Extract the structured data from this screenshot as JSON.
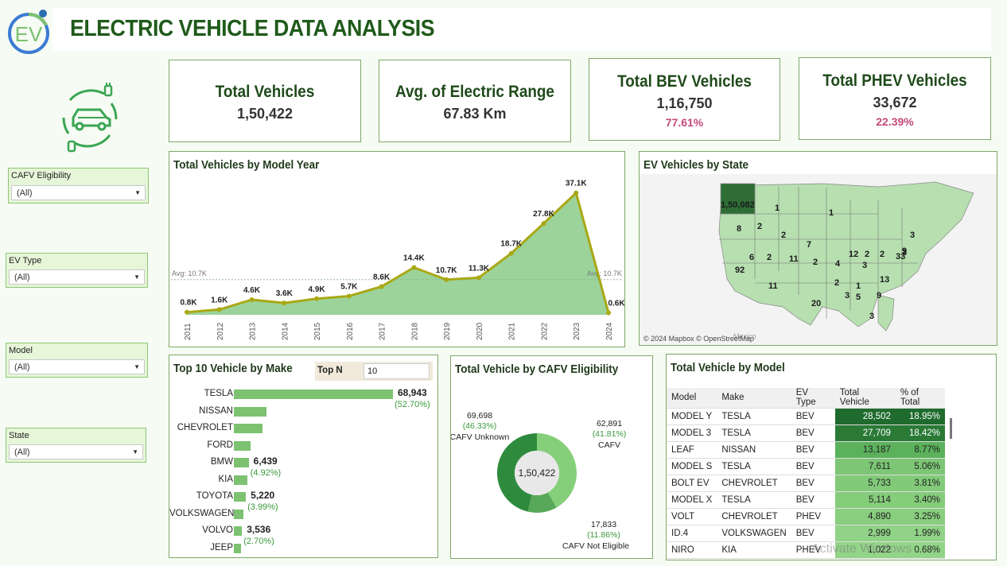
{
  "header": {
    "title": "ELECTRIC VEHICLE DATA ANALYSIS",
    "logo_text": "EV"
  },
  "kpis": {
    "total_vehicles": {
      "label": "Total Vehicles",
      "value": "1,50,422"
    },
    "avg_range": {
      "label": "Avg. of Electric Range",
      "value": "67.83 Km"
    },
    "total_bev": {
      "label": "Total BEV Vehicles",
      "value": "1,16,750",
      "pct": "77.61%"
    },
    "total_phev": {
      "label": "Total PHEV Vehicles",
      "value": "33,672",
      "pct": "22.39%"
    }
  },
  "filters": [
    {
      "label": "CAFV Eligibility",
      "value": "(All)"
    },
    {
      "label": "EV Type",
      "value": "(All)"
    },
    {
      "label": "Model",
      "value": "(All)"
    },
    {
      "label": "State",
      "value": "(All)"
    }
  ],
  "model_year": {
    "title": "Total Vehicles by Model Year",
    "avg_label": "Avg: 10.7K",
    "avg_value": 10.7
  },
  "state_map": {
    "title": "EV Vehicles by State",
    "attribution": "© 2024 Mapbox © OpenStreetMap",
    "mexico_label": "Mexico",
    "labels": [
      "1,50,082",
      "1",
      "1",
      "8",
      "2",
      "2",
      "3",
      "7",
      "3",
      "6",
      "2",
      "11",
      "2",
      "4",
      "12",
      "2",
      "2",
      "33",
      "9",
      "3",
      "92",
      "11",
      "2",
      "13",
      "20",
      "1",
      "3",
      "5",
      "9",
      "3"
    ]
  },
  "top_make": {
    "title": "Top 10 Vehicle by Make",
    "topn_label": "Top N",
    "topn_value": "10",
    "items": [
      {
        "make": "TESLA",
        "value": 68943,
        "label": "68,943",
        "pct": "(52.70%)"
      },
      {
        "make": "NISSAN",
        "value": 13998,
        "label": "",
        "pct": ""
      },
      {
        "make": "CHEVROLET",
        "value": 12500,
        "label": "",
        "pct": ""
      },
      {
        "make": "FORD",
        "value": 7300,
        "label": "",
        "pct": ""
      },
      {
        "make": "BMW",
        "value": 6439,
        "label": "6,439",
        "pct": "(4.92%)"
      },
      {
        "make": "KIA",
        "value": 5700,
        "label": "",
        "pct": ""
      },
      {
        "make": "TOYOTA",
        "value": 5220,
        "label": "5,220",
        "pct": "(3.99%)"
      },
      {
        "make": "VOLKSWAGEN",
        "value": 4000,
        "label": "",
        "pct": ""
      },
      {
        "make": "VOLVO",
        "value": 3536,
        "label": "3,536",
        "pct": "(2.70%)"
      },
      {
        "make": "JEEP",
        "value": 3000,
        "label": "",
        "pct": ""
      }
    ]
  },
  "cafv": {
    "title": "Total Vehicle by CAFV Eligibility",
    "center": "1,50,422",
    "segments": [
      {
        "name": "CAFV Unknown",
        "value": "69,698",
        "pct": "(46.33%)",
        "frac": 0.4633,
        "color": "#2e8b3e"
      },
      {
        "name": "CAFV",
        "value": "62,891",
        "pct": "(41.81%)",
        "frac": 0.4181,
        "color": "#86cf7a"
      },
      {
        "name": "CAFV Not Eligible",
        "value": "17,833",
        "pct": "(11.86%)",
        "frac": 0.1186,
        "color": "#57a858"
      }
    ]
  },
  "model_table": {
    "title": "Total Vehicle by Model",
    "columns": [
      "Model",
      "Make",
      "EV Type",
      "Total Vehicle",
      "% of Total"
    ],
    "rows": [
      [
        "MODEL Y",
        "TESLA",
        "BEV",
        "28,502",
        "18.95%"
      ],
      [
        "MODEL 3",
        "TESLA",
        "BEV",
        "27,709",
        "18.42%"
      ],
      [
        "LEAF",
        "NISSAN",
        "BEV",
        "13,187",
        "8.77%"
      ],
      [
        "MODEL S",
        "TESLA",
        "BEV",
        "7,611",
        "5.06%"
      ],
      [
        "BOLT EV",
        "CHEVROLET",
        "BEV",
        "5,733",
        "3.81%"
      ],
      [
        "MODEL X",
        "TESLA",
        "BEV",
        "5,114",
        "3.40%"
      ],
      [
        "VOLT",
        "CHEVROLET",
        "PHEV",
        "4,890",
        "3.25%"
      ],
      [
        "ID.4",
        "VOLKSWAGEN",
        "BEV",
        "2,999",
        "1.99%"
      ],
      [
        "NIRO",
        "KIA",
        "PHEV",
        "1,022",
        "0.68%"
      ]
    ],
    "shades": [
      "#1f6b2e",
      "#2a7a36",
      "#5cb25c",
      "#7cc675",
      "#82ca79",
      "#85cc7b",
      "#88ce7e",
      "#90d286",
      "#92d488"
    ]
  },
  "watermark": "Activate Windows",
  "chart_data": {
    "type": "area",
    "title": "Total Vehicles by Model Year",
    "x": [
      "2011",
      "2012",
      "2013",
      "2014",
      "2015",
      "2016",
      "2017",
      "2018",
      "2019",
      "2020",
      "2021",
      "2022",
      "2023",
      "2024"
    ],
    "values": [
      0.8,
      1.6,
      4.6,
      3.6,
      4.9,
      5.7,
      8.6,
      14.4,
      10.7,
      11.3,
      18.7,
      27.8,
      37.1,
      0.6
    ],
    "labels": [
      "0.8K",
      "1.6K",
      "4.6K",
      "3.6K",
      "4.9K",
      "5.7K",
      "8.6K",
      "14.4K",
      "10.7K",
      "11.3K",
      "18.7K",
      "27.8K",
      "37.1K",
      "0.6K"
    ],
    "ylim": [
      0,
      38
    ],
    "reference_line": {
      "label": "Avg: 10.7K",
      "value": 10.7
    },
    "grid": false,
    "colors": {
      "line": "#a9a815",
      "fill": "#9bd39a"
    }
  }
}
